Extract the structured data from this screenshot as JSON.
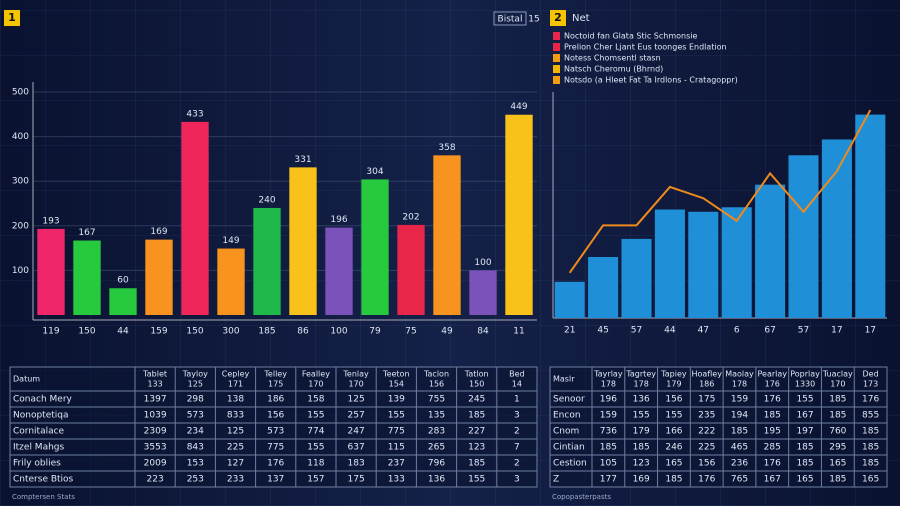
{
  "panels": [
    {
      "badge": "1",
      "tag": "Bistal",
      "tag_num": "15"
    },
    {
      "badge": "2",
      "title": "Net"
    }
  ],
  "legend": [
    {
      "name": "Noctoid fan Glata Stic Schmonsie",
      "color": "#e8264a"
    },
    {
      "name": "Prelion Cher Ljant Eus toonges Endlation",
      "color": "#e8264a"
    },
    {
      "name": "Notess Chomsentl stasn",
      "color": "#f39c12"
    },
    {
      "name": "Natsch Cheromu (Bhrnd)",
      "color": "#f5b400"
    },
    {
      "name": "Notsdo (a Hleet Fat Ta Irdlons - Cratagoppr)",
      "color": "#f39c12"
    }
  ],
  "chart_data": [
    {
      "type": "bar",
      "categories": [
        "119",
        "150",
        "44",
        "159",
        "150",
        "300",
        "185",
        "86",
        "100",
        "79",
        "75",
        "49",
        "84",
        "11"
      ],
      "values": [
        193,
        167,
        60,
        169,
        433,
        149,
        240,
        331,
        196,
        304,
        202,
        358,
        100,
        449
      ],
      "colors": [
        "#f0266a",
        "#27c93f",
        "#27c93f",
        "#f7931e",
        "#f0265a",
        "#f7931e",
        "#1fb84a",
        "#f8c21a",
        "#7b52b9",
        "#27c93f",
        "#e8264a",
        "#f7931e",
        "#7b52b9",
        "#f8c21a"
      ],
      "ylim": [
        0,
        500
      ],
      "yticks": [
        100,
        200,
        300,
        400,
        500
      ],
      "grid": true
    },
    {
      "type": "combo",
      "categories": [
        "21",
        "45",
        "57",
        "44",
        "47",
        "6",
        "67",
        "57",
        "17",
        "17"
      ],
      "values": [
        16,
        27,
        35,
        48,
        47,
        49,
        59,
        72,
        79,
        90
      ],
      "color": "#1f8fd8",
      "line_values": [
        20,
        41,
        41,
        58,
        53,
        43,
        64,
        47,
        65,
        92
      ],
      "line_color": "#f08a1c",
      "ylim": [
        0,
        100
      ]
    }
  ],
  "tables": [
    {
      "header_top": [
        "Datum",
        "Tablet",
        "Tayloy",
        "Cepley",
        "Telley",
        "Fealley",
        "Tenlay",
        "Teeton",
        "Taclon",
        "Tatlon",
        "Bed"
      ],
      "header_bottom": [
        "",
        "133",
        "125",
        "171",
        "175",
        "170",
        "170",
        "154",
        "156",
        "150",
        "14"
      ],
      "rows": [
        [
          "Conach Mery",
          "1397",
          "298",
          "138",
          "186",
          "158",
          "125",
          "139",
          "755",
          "245",
          "1"
        ],
        [
          "Nonoptetiqa",
          "1039",
          "573",
          "833",
          "156",
          "155",
          "257",
          "155",
          "135",
          "185",
          "3"
        ],
        [
          "Cornitalace",
          "2309",
          "234",
          "125",
          "573",
          "774",
          "247",
          "775",
          "283",
          "227",
          "2"
        ],
        [
          "Itzel Mahgs",
          "3553",
          "843",
          "225",
          "775",
          "155",
          "637",
          "115",
          "265",
          "123",
          "7"
        ],
        [
          "Frily oblies",
          "2009",
          "153",
          "127",
          "176",
          "118",
          "183",
          "237",
          "796",
          "185",
          "2"
        ],
        [
          "Cnterse Btios",
          "223",
          "253",
          "233",
          "137",
          "157",
          "175",
          "133",
          "136",
          "155",
          "3"
        ]
      ],
      "footer": "Comptersen Stats"
    },
    {
      "header_top": [
        "Maslr",
        "Tayrlay",
        "Tagrtey",
        "Tapiey",
        "Hoafley",
        "Maolay",
        "Pearlay",
        "Poprlay",
        "Tuaclay",
        "Ded"
      ],
      "header_bottom": [
        "",
        "178",
        "178",
        "179",
        "186",
        "178",
        "176",
        "1330",
        "170",
        "173"
      ],
      "rows": [
        [
          "Senoor",
          "196",
          "136",
          "156",
          "175",
          "159",
          "176",
          "155",
          "185",
          "176"
        ],
        [
          "Encon",
          "159",
          "155",
          "155",
          "235",
          "194",
          "185",
          "167",
          "185",
          "855"
        ],
        [
          "Cnom",
          "736",
          "179",
          "166",
          "222",
          "185",
          "195",
          "197",
          "760",
          "185"
        ],
        [
          "Cintian",
          "185",
          "185",
          "246",
          "225",
          "465",
          "285",
          "185",
          "295",
          "185"
        ],
        [
          "Cestion",
          "105",
          "123",
          "165",
          "156",
          "236",
          "176",
          "185",
          "165",
          "185"
        ],
        [
          "Z",
          "177",
          "169",
          "185",
          "176",
          "765",
          "167",
          "165",
          "185",
          "165"
        ]
      ],
      "footer": "Copopasterpasts"
    }
  ]
}
